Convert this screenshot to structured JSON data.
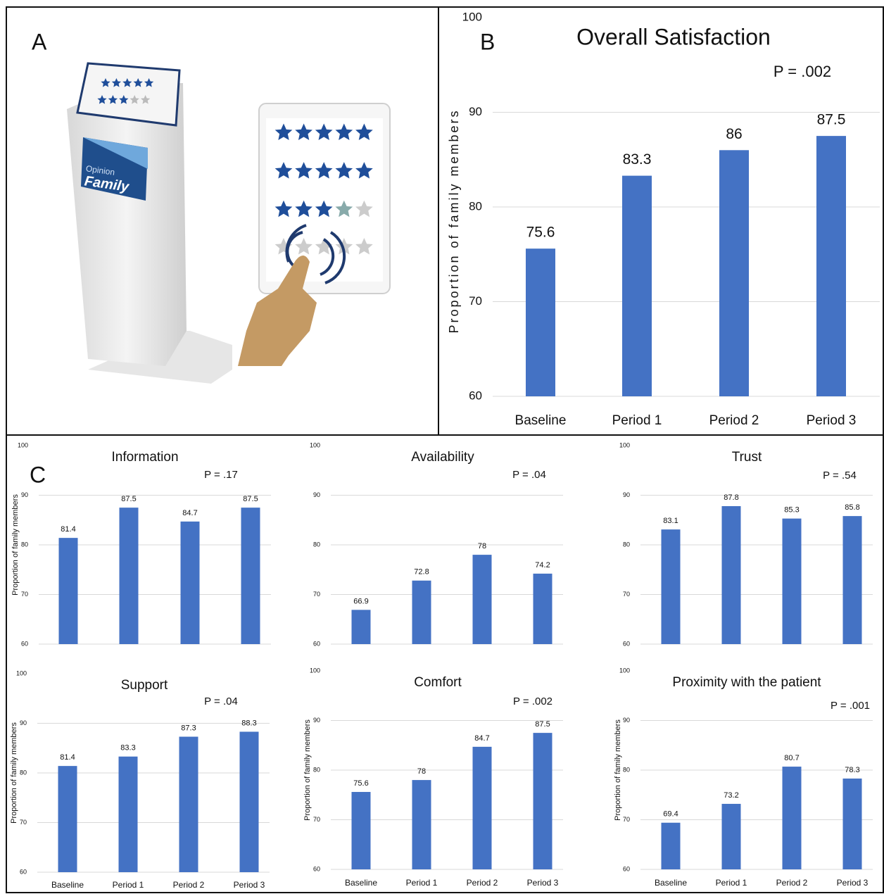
{
  "panels": {
    "a": "A",
    "b": "B",
    "c": "C"
  },
  "illustration": {
    "brand_top": "Opinion",
    "brand": "Family"
  },
  "chart_data": [
    {
      "type": "bar",
      "title": "Overall Satisfaction",
      "annotation": "P = .002",
      "y_label": "Proportion of family members",
      "categories": [
        "Baseline",
        "Period 1",
        "Period 2",
        "Period 3"
      ],
      "values": [
        75.6,
        83.3,
        86,
        87.5
      ],
      "color": "#4472c4",
      "ylim": [
        60,
        100
      ],
      "yticks": [
        60,
        70,
        80,
        90,
        100
      ],
      "grid": true
    },
    {
      "type": "bar",
      "title": "Information",
      "annotation": "P = .17",
      "y_label": "Proportion of family members",
      "categories": [
        null,
        null,
        null,
        null
      ],
      "values": [
        81.4,
        87.5,
        84.7,
        87.5
      ],
      "color": "#4472c4",
      "ylim": [
        60,
        100
      ],
      "yticks": [
        60,
        70,
        80,
        90,
        100
      ],
      "grid": true
    },
    {
      "type": "bar",
      "title": "Availability",
      "annotation": "P = .04",
      "categories": [
        null,
        null,
        null,
        null
      ],
      "values": [
        66.9,
        72.8,
        78,
        74.2
      ],
      "color": "#4472c4",
      "ylim": [
        60,
        100
      ],
      "yticks": [
        60,
        70,
        80,
        90,
        100
      ],
      "grid": true
    },
    {
      "type": "bar",
      "title": "Trust",
      "annotation": "P = .54",
      "categories": [
        null,
        null,
        null,
        null
      ],
      "values": [
        83.1,
        87.8,
        85.3,
        85.8
      ],
      "color": "#4472c4",
      "ylim": [
        60,
        100
      ],
      "yticks": [
        60,
        70,
        80,
        90,
        100
      ],
      "grid": true
    },
    {
      "type": "bar",
      "title": "Support",
      "annotation": "P = .04",
      "y_label": "Proportion of family members",
      "categories": [
        "Baseline",
        "Period 1",
        "Period 2",
        "Period 3"
      ],
      "values": [
        81.4,
        83.3,
        87.3,
        88.3
      ],
      "color": "#4472c4",
      "ylim": [
        60,
        100
      ],
      "yticks": [
        60,
        70,
        80,
        90,
        100
      ],
      "grid": true
    },
    {
      "type": "bar",
      "title": "Comfort",
      "annotation": "P = .002",
      "y_label": "Proportion of family members",
      "categories": [
        "Baseline",
        "Period 1",
        "Period 2",
        "Period 3"
      ],
      "values": [
        75.6,
        78,
        84.7,
        87.5
      ],
      "color": "#4472c4",
      "ylim": [
        60,
        100
      ],
      "yticks": [
        60,
        70,
        80,
        90,
        100
      ],
      "grid": true
    },
    {
      "type": "bar",
      "title": "Proximity with the patient",
      "annotation": "P = .001",
      "y_label": "Proportion of family members",
      "categories": [
        "Baseline",
        "Period 1",
        "Period 2",
        "Period 3"
      ],
      "values": [
        69.4,
        73.2,
        80.7,
        78.3
      ],
      "color": "#4472c4",
      "ylim": [
        60,
        100
      ],
      "yticks": [
        60,
        70,
        80,
        90,
        100
      ],
      "grid": true
    }
  ]
}
